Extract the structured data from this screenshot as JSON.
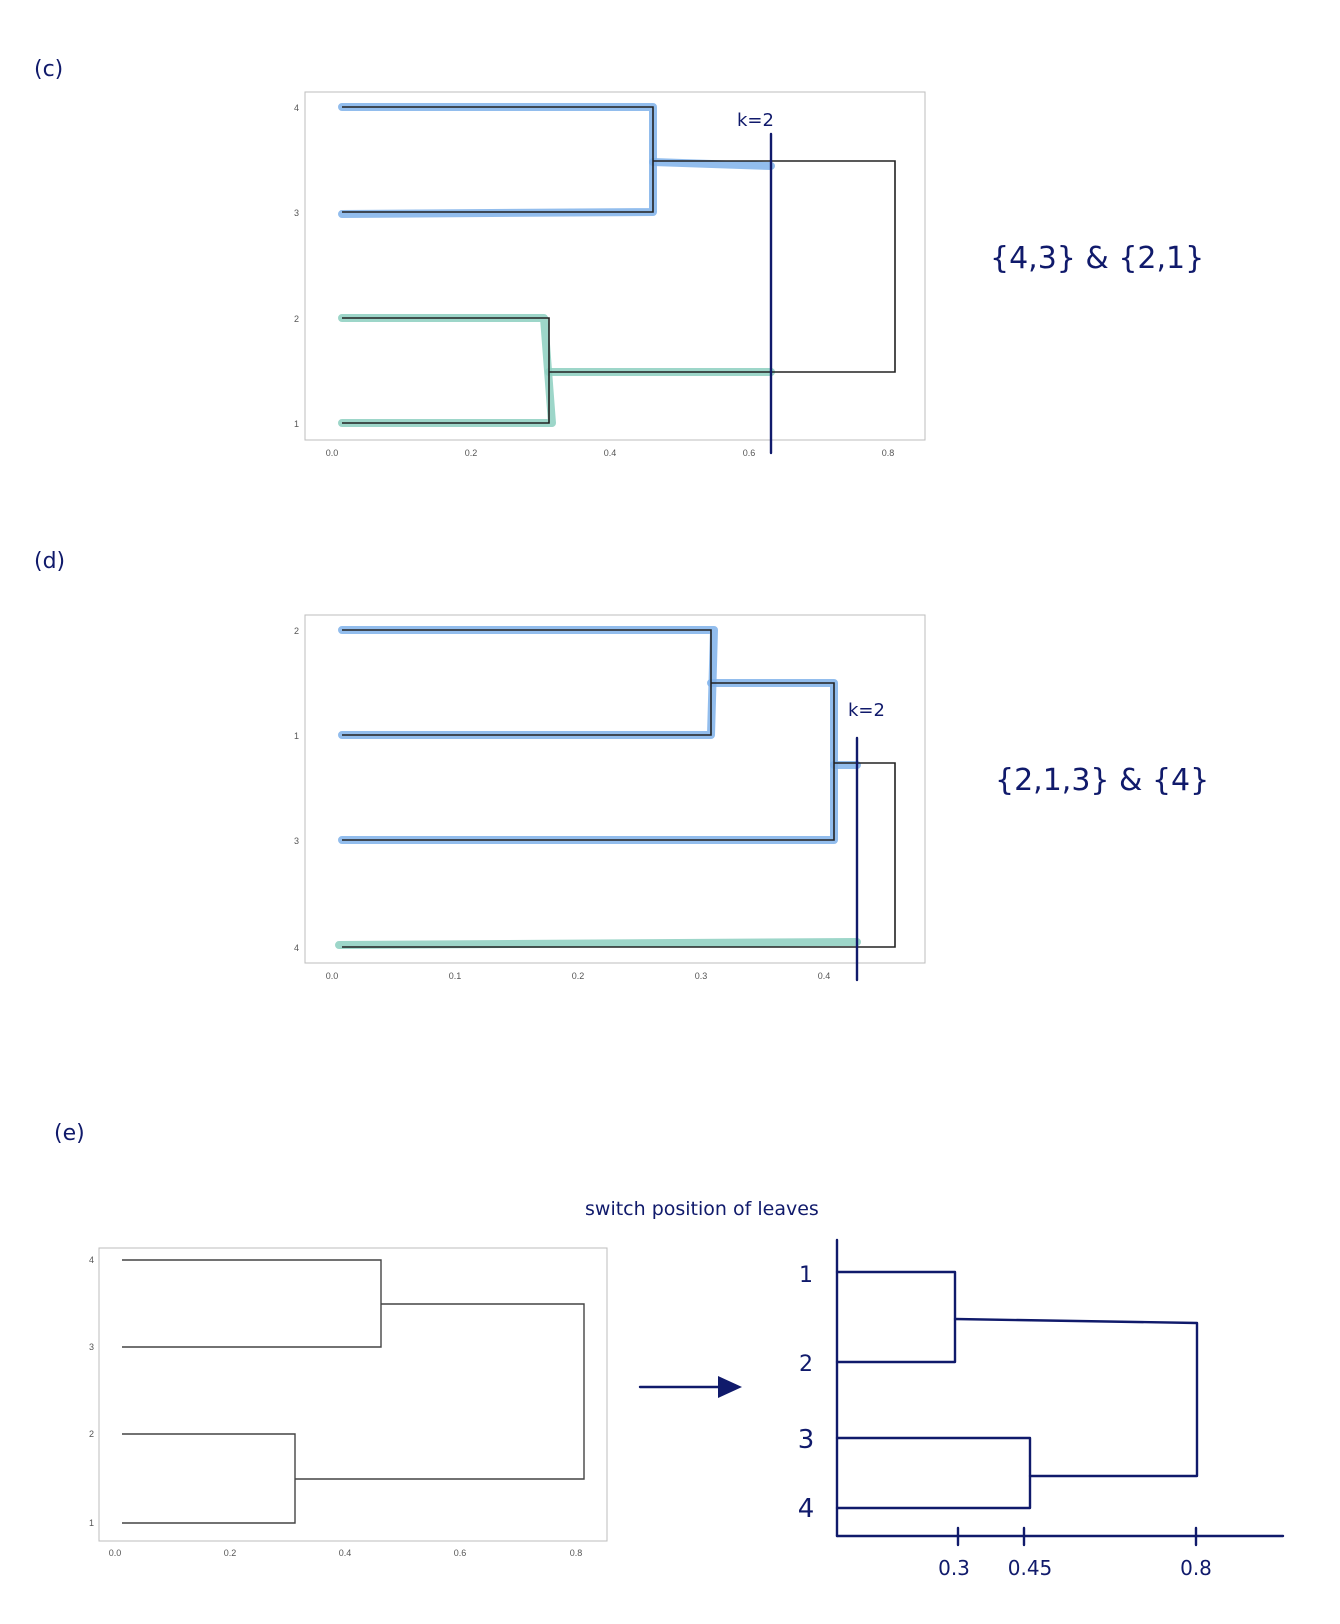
{
  "sections": {
    "c": {
      "label": "(c)",
      "cut_label": "k=2",
      "y_leaves": [
        "4",
        "3",
        "2",
        "1"
      ],
      "x_ticks": [
        "0.0",
        "0.2",
        "0.4",
        "0.6",
        "0.8"
      ],
      "answer": "{4,3} & {2,1}"
    },
    "d": {
      "label": "(d)",
      "cut_label": "k=2",
      "y_leaves": [
        "2",
        "1",
        "3",
        "4"
      ],
      "x_ticks": [
        "0.0",
        "0.1",
        "0.2",
        "0.3",
        "0.4"
      ],
      "answer": "{2,1,3} & {4}"
    },
    "e": {
      "label": "(e)",
      "note": "switch position of leaves",
      "left_y_leaves": [
        "4",
        "3",
        "2",
        "1"
      ],
      "left_x_ticks": [
        "0.0",
        "0.2",
        "0.4",
        "0.6",
        "0.8"
      ],
      "right_y_leaves": [
        "1",
        "2",
        "3",
        "4"
      ],
      "right_x_ticks": [
        "0.3",
        "0.45",
        "0.8"
      ]
    }
  },
  "chart_data": [
    {
      "type": "dendrogram",
      "section": "c",
      "leaves": [
        "4",
        "3",
        "2",
        "1"
      ],
      "merges": [
        {
          "members": [
            "4",
            "3"
          ],
          "height": 0.46
        },
        {
          "members": [
            "2",
            "1"
          ],
          "height": 0.31
        },
        {
          "members": [
            "4",
            "3",
            "2",
            "1"
          ],
          "height": 0.81
        }
      ],
      "cut_height": 0.63,
      "xlim": [
        0.0,
        0.8
      ],
      "clusters": [
        [
          "4",
          "3"
        ],
        [
          "2",
          "1"
        ]
      ],
      "cluster_colors": [
        "#7fb2ea",
        "#8ccfbf"
      ]
    },
    {
      "type": "dendrogram",
      "section": "d",
      "leaves": [
        "2",
        "1",
        "3",
        "4"
      ],
      "merges": [
        {
          "members": [
            "2",
            "1"
          ],
          "height": 0.307
        },
        {
          "members": [
            "2",
            "1",
            "3"
          ],
          "height": 0.407
        },
        {
          "members": [
            "2",
            "1",
            "3",
            "4"
          ],
          "height": 0.457
        }
      ],
      "cut_height": 0.428,
      "xlim": [
        0.0,
        0.4
      ],
      "clusters": [
        [
          "2",
          "1",
          "3"
        ],
        [
          "4"
        ]
      ],
      "cluster_colors": [
        "#7fb2ea",
        "#8ccfbf"
      ]
    },
    {
      "type": "dendrogram",
      "section": "e-left",
      "leaves": [
        "4",
        "3",
        "2",
        "1"
      ],
      "merges": [
        {
          "members": [
            "4",
            "3"
          ],
          "height": 0.46
        },
        {
          "members": [
            "2",
            "1"
          ],
          "height": 0.31
        },
        {
          "members": [
            "4",
            "3",
            "2",
            "1"
          ],
          "height": 0.81
        }
      ],
      "xlim": [
        0.0,
        0.8
      ]
    },
    {
      "type": "dendrogram",
      "section": "e-right",
      "leaves": [
        "1",
        "2",
        "3",
        "4"
      ],
      "merges": [
        {
          "members": [
            "1",
            "2"
          ],
          "height": 0.3
        },
        {
          "members": [
            "3",
            "4"
          ],
          "height": 0.45
        },
        {
          "members": [
            "1",
            "2",
            "3",
            "4"
          ],
          "height": 0.8
        }
      ]
    }
  ]
}
